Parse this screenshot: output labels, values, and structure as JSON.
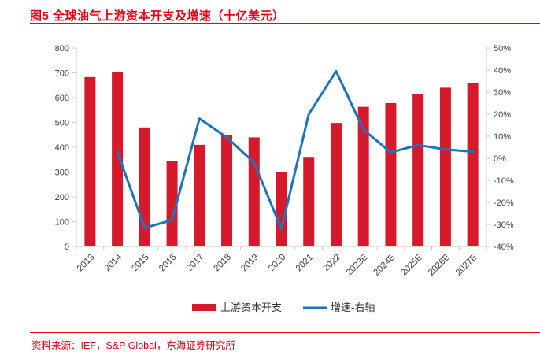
{
  "page": {
    "title": "图5  全球油气上游资本开支及增速（十亿美元）",
    "source": "资料来源：IEF，S&P Global，东海证券研究所"
  },
  "colors": {
    "accent_red": "#E60012",
    "bar_red": "#D61A2C",
    "line_blue": "#1B75BC",
    "axis_gray": "#C9C9C9",
    "text_dark": "#404040",
    "legend_text": "#333333"
  },
  "legend": {
    "items": [
      {
        "label": "上游资本开支",
        "swatch": "bar",
        "color": "#D61A2C"
      },
      {
        "label": "增速-右轴",
        "swatch": "line",
        "color": "#1B75BC"
      }
    ],
    "position": "bottom"
  },
  "chart_data": {
    "type": "bar",
    "subtype": "bar+line combo, dual axis",
    "title": "全球油气上游资本开支及增速（十亿美元）",
    "categories": [
      "2013",
      "2014",
      "2015",
      "2016",
      "2017",
      "2018",
      "2019",
      "2020",
      "2021",
      "2022",
      "2023E",
      "2024E",
      "2025E",
      "2026E",
      "2027E"
    ],
    "series": [
      {
        "name": "上游资本开支",
        "type": "bar",
        "axis": "left",
        "color": "#D61A2C",
        "values": [
          683,
          702,
          480,
          345,
          410,
          448,
          440,
          300,
          358,
          498,
          563,
          578,
          615,
          640,
          660
        ]
      },
      {
        "name": "增速-右轴",
        "type": "line",
        "axis": "right",
        "color": "#1B75BC",
        "values": [
          null,
          2.8,
          -31.6,
          -28,
          18,
          9.5,
          -2,
          -32,
          20,
          39.5,
          13,
          2.7,
          6,
          4,
          3
        ]
      }
    ],
    "left_axis": {
      "min": 0,
      "max": 800,
      "step": 100,
      "tick_labels": [
        "0",
        "100",
        "200",
        "300",
        "400",
        "500",
        "600",
        "700",
        "800"
      ]
    },
    "right_axis": {
      "min": -40,
      "max": 50,
      "step": 10,
      "tick_labels": [
        "-40%",
        "-30%",
        "-20%",
        "-10%",
        "0%",
        "10%",
        "20%",
        "30%",
        "40%",
        "50%"
      ]
    },
    "grid": false,
    "x_label_rotation_deg": 45,
    "legend_position": "bottom"
  }
}
